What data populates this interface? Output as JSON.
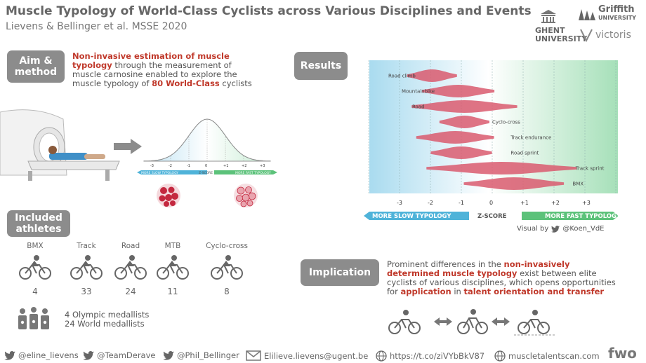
{
  "header": {
    "title": "Muscle Typology of World-Class Cyclists across Various Disciplines and Events",
    "subtitle": "Lievens & Bellinger et al. MSSE 2020"
  },
  "logos": {
    "ghent": "GHENT\nUNIVERSITY",
    "ghent_line1": "GHENT",
    "ghent_line2": "UNIVERSITY",
    "griffith_line1": "Griffith",
    "griffith_line2": "UNIVERSITY",
    "victoria": "victoris"
  },
  "aim": {
    "label_line1": "Aim &",
    "label_line2": "method",
    "text_bold1": "Non-invasive estimation of muscle typology",
    "text_plain1": " through the measurement of muscle carnosine enabled to explore the muscle typology of ",
    "text_bold2": "80 World-Class",
    "text_plain2": " cyclists"
  },
  "mini_curve": {
    "ticks": [
      "-3",
      "-2",
      "-1",
      "0",
      "+1",
      "+2",
      "+3"
    ],
    "left_label": "MORE SLOW TYPOLOGY",
    "center_label": "Z-SCORE",
    "right_label": "MORE FAST TYPOLOGY"
  },
  "results": {
    "label": "Results",
    "disciplines": [
      "Road climb",
      "Mountainbike",
      "Road",
      "Cyclo-cross",
      "Track endurance",
      "Road sprint",
      "Track sprint",
      "BMX"
    ],
    "centers": [
      -1.95,
      -1.1,
      -0.9,
      -0.9,
      -1.2,
      -1.0,
      0.3,
      0.7
    ],
    "ticks": [
      "-3",
      "-2",
      "-1",
      "0",
      "+1",
      "+2",
      "+3"
    ],
    "left_label": "MORE SLOW TYPOLOGY",
    "center_label": "Z-SCORE",
    "right_label": "MORE FAST TYPOLOGY",
    "credit": "Visual by",
    "credit_handle": "@Koen_VdE"
  },
  "athletes": {
    "label_line1": "Included",
    "label_line2": "athletes",
    "groups": [
      {
        "name": "BMX",
        "count": "4"
      },
      {
        "name": "Track",
        "count": "33"
      },
      {
        "name": "Road",
        "count": "24"
      },
      {
        "name": "MTB",
        "count": "11"
      },
      {
        "name": "Cyclo-cross",
        "count": "8"
      }
    ],
    "medals_line1": "4 Olympic medallists",
    "medals_line2": "24 World medallists"
  },
  "implication": {
    "label": "Implication",
    "text_plain1": "Prominent differences in the ",
    "text_bold1": "non-invasively determined muscle typology",
    "text_plain2": " exist between elite cyclists of various disciplines, which opens opportunities for ",
    "text_bold2": "application",
    "text_plain3": " in ",
    "text_bold3": "talent orientation and transfer"
  },
  "footer": {
    "handle1": "@eline_lievens",
    "handle2": "@TeamDerave",
    "handle3": "@Phil_Bellinger",
    "email": "Elilieve.lievens@ugent.be",
    "link": "https://t.co/ziVYbBkV87",
    "site": "muscletalentscan.com",
    "brand": "fwo"
  },
  "colors": {
    "slow": "#4fb3d9",
    "fast": "#5cc27a",
    "violin": "#d95b6e",
    "pill": "#8c8c8c"
  }
}
